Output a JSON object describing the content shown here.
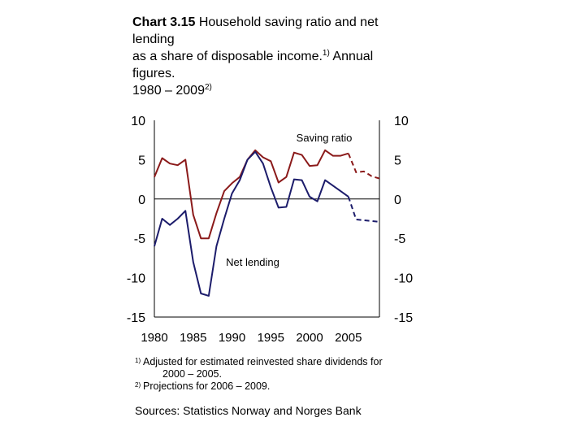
{
  "title": {
    "bold": "Chart 3.15",
    "line1": " Household saving ratio and net",
    "line2": "lending",
    "line3a": "as a share of disposable income.",
    "line3_sup": "1)",
    "line3b": " Annual",
    "line4": "figures.",
    "line5a": "1980 – 2009",
    "line5_sup": "2)"
  },
  "chart_data": {
    "type": "line",
    "xlim": [
      1980,
      2009
    ],
    "ylim": [
      -15,
      10
    ],
    "x_ticks": [
      1980,
      1985,
      1990,
      1995,
      2000,
      2005
    ],
    "x_tick_labels": [
      "1980",
      "1985",
      "1990",
      "1995",
      "2000",
      "2005"
    ],
    "y_ticks": [
      10,
      5,
      0,
      -5,
      -10,
      -15
    ],
    "y_tick_labels": [
      "10",
      "5",
      "0",
      "-5",
      "-10",
      "-15"
    ],
    "annotations": {
      "saving": "Saving ratio",
      "lending": "Net lending"
    },
    "colors": {
      "saving": "#8b1a1a",
      "lending": "#1c1c6b",
      "zero_line": "#000000"
    },
    "series": [
      {
        "name": "Saving ratio",
        "key": "saving",
        "x": [
          1980,
          1981,
          1982,
          1983,
          1984,
          1985,
          1986,
          1987,
          1988,
          1989,
          1990,
          1991,
          1992,
          1993,
          1994,
          1995,
          1996,
          1997,
          1998,
          1999,
          2000,
          2001,
          2002,
          2003,
          2004,
          2005,
          2006,
          2007,
          2008,
          2009
        ],
        "values": [
          2.8,
          5.2,
          4.5,
          4.3,
          5.0,
          -2.0,
          -5.0,
          -5.0,
          -1.8,
          1.0,
          2.0,
          2.8,
          5.0,
          6.2,
          5.3,
          4.8,
          2.1,
          2.8,
          5.9,
          5.6,
          4.2,
          4.3,
          6.2,
          5.5,
          5.5,
          5.8,
          3.4,
          3.5,
          2.9,
          2.6
        ],
        "projection_from": 2005
      },
      {
        "name": "Net lending",
        "key": "lending",
        "x": [
          1980,
          1981,
          1982,
          1983,
          1984,
          1985,
          1986,
          1987,
          1988,
          1989,
          1990,
          1991,
          1992,
          1993,
          1994,
          1995,
          1996,
          1997,
          1998,
          1999,
          2000,
          2001,
          2002,
          2003,
          2004,
          2005,
          2006,
          2007,
          2008,
          2009
        ],
        "values": [
          -6.0,
          -2.5,
          -3.3,
          -2.5,
          -1.5,
          -8.0,
          -12.0,
          -12.3,
          -6.0,
          -2.5,
          0.7,
          2.4,
          5.0,
          6.0,
          4.5,
          1.5,
          -1.1,
          -1.0,
          2.5,
          2.4,
          0.3,
          -0.3,
          2.4,
          1.7,
          1.0,
          0.3,
          -2.6,
          -2.7,
          -2.8,
          -2.9
        ],
        "projection_from": 2005
      }
    ]
  },
  "footnotes": {
    "n1_mark": "1)",
    "n1_line1": "Adjusted for estimated reinvested share dividends for",
    "n1_line2": "2000 – 2005.",
    "n2_mark": "2)",
    "n2_line1": "Projections for 2006 – 2009."
  },
  "sources": "Sources: Statistics Norway and Norges Bank"
}
